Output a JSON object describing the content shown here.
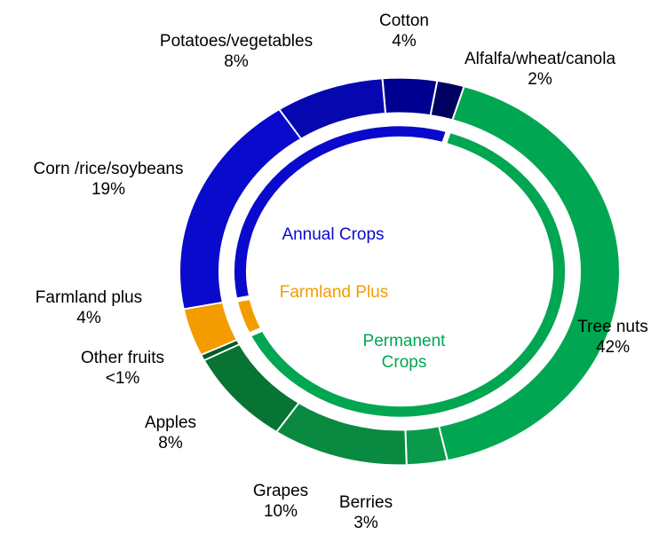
{
  "chart_data": {
    "type": "donut",
    "categories": [
      "Tree nuts",
      "Berries",
      "Grapes",
      "Apples",
      "Other fruits",
      "Farmland plus",
      "Corn /rice/soybeans",
      "Potatoes/vegetables",
      "Cotton",
      "Alfalfa/wheat/canola"
    ],
    "values": [
      42,
      3,
      10,
      8,
      0.5,
      4,
      19,
      8,
      4,
      2
    ],
    "value_labels": [
      "42%",
      "3%",
      "10%",
      "8%",
      "<1%",
      "4%",
      "19%",
      "8%",
      "4%",
      "2%"
    ],
    "colors": [
      "#00a651",
      "#0b9a4b",
      "#0a8a40",
      "#077434",
      "#005a2b",
      "#f39c00",
      "#0a0acc",
      "#0707b0",
      "#000090",
      "#000060"
    ],
    "inner": {
      "categories": [
        "Permanent Crops",
        "Farmland Plus",
        "Annual Crops"
      ],
      "values": [
        63.5,
        4,
        33
      ],
      "colors": [
        "#00a651",
        "#f39c00",
        "#0a0acc"
      ]
    }
  }
}
